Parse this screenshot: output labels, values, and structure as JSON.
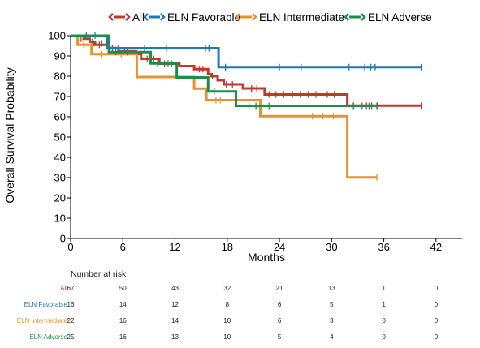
{
  "chart_data": {
    "type": "line",
    "subtype": "kaplan-meier",
    "title": "",
    "xlabel": "Months",
    "ylabel": "Overall Survival Probability",
    "xlim": [
      0,
      45
    ],
    "ylim": [
      0,
      100
    ],
    "xticks": [
      0,
      6,
      12,
      18,
      24,
      30,
      36,
      42
    ],
    "yticks": [
      0,
      10,
      20,
      30,
      40,
      50,
      60,
      70,
      80,
      90,
      100
    ],
    "legend_position": "top",
    "series": [
      {
        "name": "All",
        "color": "#c0392b",
        "steps": [
          [
            0,
            100
          ],
          [
            1.5,
            98.5
          ],
          [
            2.2,
            97
          ],
          [
            2.8,
            95.5
          ],
          [
            4.3,
            93.9
          ],
          [
            5.5,
            92.3
          ],
          [
            7.5,
            91
          ],
          [
            8.1,
            88.6
          ],
          [
            10.2,
            86.2
          ],
          [
            12.5,
            85
          ],
          [
            14.2,
            83.5
          ],
          [
            15.8,
            81
          ],
          [
            16.1,
            80
          ],
          [
            16.9,
            78
          ],
          [
            17.6,
            76
          ],
          [
            19.8,
            74
          ],
          [
            22.3,
            71
          ],
          [
            31.8,
            65.5
          ],
          [
            40.3,
            65.5
          ]
        ],
        "censors": [
          [
            1.2,
            98.5
          ],
          [
            2.5,
            97
          ],
          [
            3.3,
            95.5
          ],
          [
            4.8,
            93.9
          ],
          [
            6.2,
            92.3
          ],
          [
            8.8,
            88.6
          ],
          [
            9.5,
            88.6
          ],
          [
            10.8,
            86.2
          ],
          [
            11.6,
            86.2
          ],
          [
            14.8,
            83.5
          ],
          [
            15.2,
            83.5
          ],
          [
            16.3,
            80
          ],
          [
            17.9,
            76
          ],
          [
            18.6,
            76
          ],
          [
            20.8,
            74
          ],
          [
            21.4,
            74
          ],
          [
            22.8,
            71
          ],
          [
            23.6,
            71
          ],
          [
            24.5,
            71
          ],
          [
            25.5,
            71
          ],
          [
            26.4,
            71
          ],
          [
            27.3,
            71
          ],
          [
            28.2,
            71
          ],
          [
            29.5,
            71
          ],
          [
            30.3,
            71
          ],
          [
            32.5,
            65.5
          ],
          [
            34,
            65.5
          ],
          [
            34.6,
            65.5
          ],
          [
            35.3,
            65.5
          ],
          [
            40.3,
            65.5
          ]
        ]
      },
      {
        "name": "ELN Favorable",
        "color": "#1f78b4",
        "steps": [
          [
            0,
            100
          ],
          [
            4.2,
            93.8
          ],
          [
            17,
            84.5
          ],
          [
            40.3,
            84.5
          ]
        ],
        "censors": [
          [
            1.8,
            100
          ],
          [
            2.8,
            100
          ],
          [
            4.8,
            93.8
          ],
          [
            5.5,
            93.8
          ],
          [
            8.5,
            93.8
          ],
          [
            11,
            93.8
          ],
          [
            15.5,
            93.8
          ],
          [
            15.9,
            93.8
          ],
          [
            17.8,
            84.5
          ],
          [
            24,
            84.5
          ],
          [
            26.5,
            84.5
          ],
          [
            32,
            84.5
          ],
          [
            33.8,
            84.5
          ],
          [
            34.5,
            84.5
          ],
          [
            35,
            84.5
          ],
          [
            40.3,
            84.5
          ]
        ]
      },
      {
        "name": "ELN Intermediate",
        "color": "#e8922e",
        "steps": [
          [
            0,
            100
          ],
          [
            0.8,
            95.5
          ],
          [
            2.4,
            90.9
          ],
          [
            7.6,
            79.6
          ],
          [
            14.2,
            73.9
          ],
          [
            15.6,
            68.2
          ],
          [
            21.8,
            60.3
          ],
          [
            31.8,
            30.1
          ],
          [
            35.2,
            30.1
          ]
        ],
        "censors": [
          [
            1.5,
            95.5
          ],
          [
            3.5,
            90.9
          ],
          [
            5.8,
            90.9
          ],
          [
            16.7,
            68.2
          ],
          [
            17.2,
            68.2
          ],
          [
            27.8,
            60.3
          ],
          [
            29,
            60.3
          ],
          [
            30.2,
            60.3
          ],
          [
            35.2,
            30.1
          ]
        ]
      },
      {
        "name": "ELN Adverse",
        "color": "#1e8c4e",
        "steps": [
          [
            0,
            100
          ],
          [
            4.4,
            91.9
          ],
          [
            9.2,
            86.3
          ],
          [
            12.2,
            79.4
          ],
          [
            15.8,
            72.5
          ],
          [
            19,
            65.4
          ],
          [
            35.2,
            65.4
          ]
        ],
        "censors": [
          [
            2.6,
            96.2
          ],
          [
            3.5,
            96.2
          ],
          [
            5.2,
            91.9
          ],
          [
            6.5,
            91.9
          ],
          [
            10,
            86.3
          ],
          [
            11.2,
            86.3
          ],
          [
            16.5,
            72.5
          ],
          [
            20.5,
            65.4
          ],
          [
            21.3,
            65.4
          ],
          [
            22.8,
            65.4
          ],
          [
            32.5,
            65.4
          ],
          [
            33.5,
            65.4
          ],
          [
            34.3,
            65.4
          ],
          [
            35.2,
            65.4
          ]
        ]
      }
    ],
    "risk_table": {
      "title": "Number at risk",
      "time_points": [
        0,
        6,
        12,
        18,
        24,
        30,
        36,
        42
      ],
      "rows": [
        {
          "label": "All",
          "color": "#c0392b",
          "values": [
            "67",
            "50",
            "43",
            "32",
            "21",
            "13",
            "1",
            "0"
          ]
        },
        {
          "label": "ELN Favorable",
          "color": "#1f78b4",
          "values": [
            "16",
            "14",
            "12",
            "8",
            "6",
            "5",
            "1",
            "0"
          ]
        },
        {
          "label": "ELN Intermediate",
          "color": "#e8922e",
          "values": [
            "22",
            "16",
            "14",
            "10",
            "6",
            "3",
            "0",
            "0"
          ]
        },
        {
          "label": "ELN Adverse",
          "color": "#1e8c4e",
          "values": [
            "25",
            "16",
            "13",
            "10",
            "5",
            "4",
            "0",
            "0"
          ]
        }
      ]
    }
  }
}
